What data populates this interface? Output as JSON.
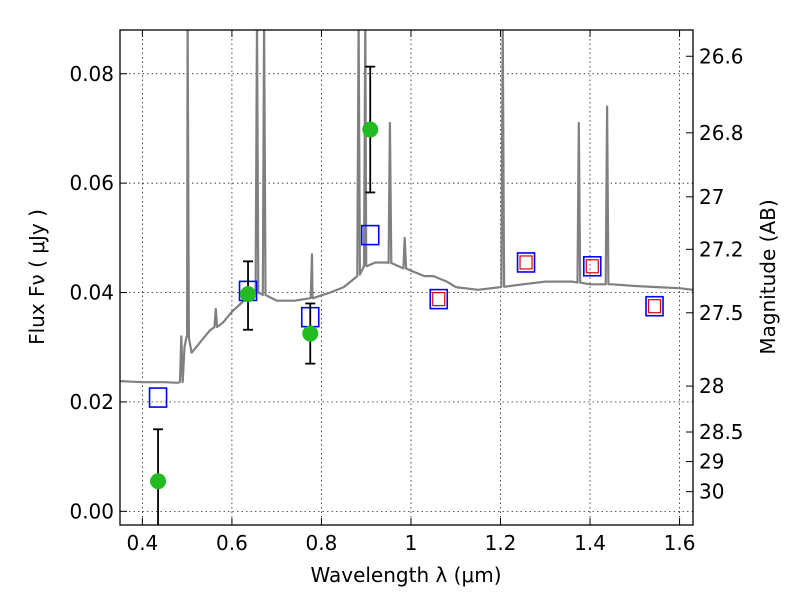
{
  "chart_data": {
    "type": "scatter",
    "xlabel": "Wavelength  λ (μm)",
    "ylabel": "Flux  Fν  ( μJy )",
    "y2label": "Magnitude (AB)",
    "xlim": [
      0.35,
      1.63
    ],
    "ylim": [
      -0.0025,
      0.088
    ],
    "grid": true,
    "x_ticks": [
      0.4,
      0.6,
      0.8,
      1.0,
      1.2,
      1.4,
      1.6
    ],
    "x_tick_labels": [
      "0.4",
      "0.6",
      "0.8",
      "1",
      "1.2",
      "1.4",
      "1.6"
    ],
    "y_ticks": [
      0.0,
      0.02,
      0.04,
      0.06,
      0.08
    ],
    "y_tick_labels": [
      "0.00",
      "0.02",
      "0.04",
      "0.06",
      "0.08"
    ],
    "y2_ticks": [
      {
        "label": "26.6",
        "flux": 0.0832
      },
      {
        "label": "26.8",
        "flux": 0.0692
      },
      {
        "label": "27",
        "flux": 0.0575
      },
      {
        "label": "27.2",
        "flux": 0.0479
      },
      {
        "label": "27.5",
        "flux": 0.0363
      },
      {
        "label": "28",
        "flux": 0.0229
      },
      {
        "label": "28.5",
        "flux": 0.0145
      },
      {
        "label": "29",
        "flux": 0.0091
      },
      {
        "label": "30",
        "flux": 0.0036
      }
    ],
    "colors": {
      "model": "#808080",
      "observed": "#22bb22",
      "model_band": "#0000ff",
      "model_band_inner": "#dd0000"
    },
    "series": [
      {
        "role": "model spectrum",
        "style": "line",
        "x": [
          0.35,
          0.4,
          0.45,
          0.48,
          0.49,
          0.494,
          0.5,
          0.51,
          0.52,
          0.55,
          0.58,
          0.6,
          0.62,
          0.64,
          0.66,
          0.7,
          0.74,
          0.78,
          0.8,
          0.82,
          0.85,
          0.88,
          0.9,
          0.92,
          0.95,
          1.0,
          1.03,
          1.05,
          1.08,
          1.1,
          1.15,
          1.2,
          1.25,
          1.3,
          1.36,
          1.4,
          1.45,
          1.5,
          1.55,
          1.6,
          1.63
        ],
        "y": [
          0.0238,
          0.0236,
          0.0236,
          0.0235,
          0.0237,
          0.03,
          0.032,
          0.029,
          0.03,
          0.033,
          0.0345,
          0.0365,
          0.038,
          0.0395,
          0.04,
          0.0385,
          0.0385,
          0.039,
          0.0395,
          0.04,
          0.041,
          0.043,
          0.045,
          0.0455,
          0.0455,
          0.044,
          0.043,
          0.043,
          0.042,
          0.041,
          0.0405,
          0.041,
          0.0415,
          0.042,
          0.042,
          0.0415,
          0.0415,
          0.0412,
          0.041,
          0.0408,
          0.0405
        ],
        "emission_lines": [
          {
            "x": 0.487,
            "peak": 0.032
          },
          {
            "x": 0.501,
            "peak": 0.09
          },
          {
            "x": 0.564,
            "peak": 0.037
          },
          {
            "x": 0.656,
            "peak": 0.09
          },
          {
            "x": 0.672,
            "peak": 0.09
          },
          {
            "x": 0.779,
            "peak": 0.047
          },
          {
            "x": 0.883,
            "peak": 0.09
          },
          {
            "x": 0.898,
            "peak": 0.09
          },
          {
            "x": 0.953,
            "peak": 0.071
          },
          {
            "x": 0.986,
            "peak": 0.05
          },
          {
            "x": 1.205,
            "peak": 0.09
          },
          {
            "x": 1.375,
            "peak": 0.071
          },
          {
            "x": 1.438,
            "peak": 0.074
          }
        ]
      },
      {
        "role": "observed photometry",
        "style": "circle-errorbar",
        "points": [
          {
            "x": 0.435,
            "y": 0.0055,
            "err_low": 0.018,
            "err_high": 0.0095
          },
          {
            "x": 0.636,
            "y": 0.0397,
            "err_low": 0.0065,
            "err_high": 0.006
          },
          {
            "x": 0.775,
            "y": 0.0325,
            "err_low": 0.0055,
            "err_high": 0.0055
          },
          {
            "x": 0.909,
            "y": 0.0698,
            "err_low": 0.0115,
            "err_high": 0.0115
          }
        ]
      },
      {
        "role": "model band fluxes",
        "style": "open-square",
        "points": [
          {
            "x": 0.435,
            "y": 0.0208,
            "inner": false
          },
          {
            "x": 0.636,
            "y": 0.0403,
            "inner": false
          },
          {
            "x": 0.775,
            "y": 0.0355,
            "inner": false
          },
          {
            "x": 0.909,
            "y": 0.0505,
            "inner": false
          },
          {
            "x": 1.062,
            "y": 0.0388,
            "inner": true
          },
          {
            "x": 1.257,
            "y": 0.0455,
            "inner": true
          },
          {
            "x": 1.405,
            "y": 0.0448,
            "inner": true
          },
          {
            "x": 1.544,
            "y": 0.0375,
            "inner": true
          }
        ]
      }
    ]
  }
}
